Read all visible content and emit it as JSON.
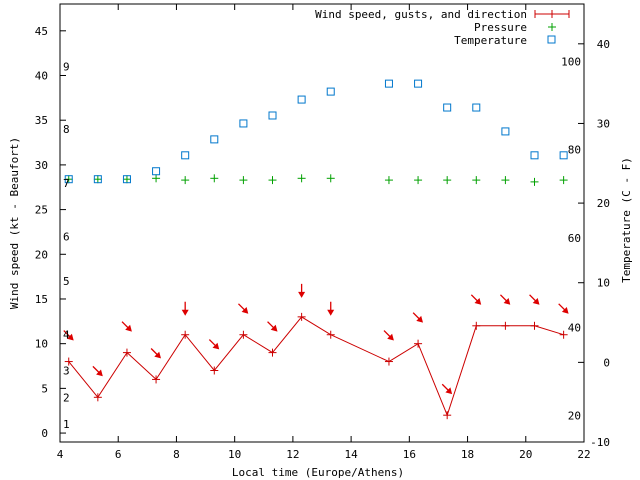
{
  "chart_data": {
    "type": "line",
    "xlabel": "Local time (Europe/Athens)",
    "ylabel": "Wind speed (kt - Beaufort)",
    "y2label": "Temperature (C - F)",
    "xlim": [
      4,
      22
    ],
    "ylim": [
      -1,
      48
    ],
    "y2lim": [
      -10,
      45
    ],
    "x_ticks": [
      "4",
      "6",
      "8",
      "10",
      "12",
      "14",
      "16",
      "18",
      "20",
      "22"
    ],
    "y_ticks": [
      "0",
      "5",
      "10",
      "15",
      "20",
      "25",
      "30",
      "35",
      "40",
      "45"
    ],
    "y2_ticks": [
      "-10",
      "0",
      "10",
      "20",
      "30",
      "40"
    ],
    "beaufort_labels": [
      {
        "label": "1",
        "kt": 1
      },
      {
        "label": "2",
        "kt": 4
      },
      {
        "label": "3",
        "kt": 7
      },
      {
        "label": "4",
        "kt": 11
      },
      {
        "label": "5",
        "kt": 17
      },
      {
        "label": "6",
        "kt": 22
      },
      {
        "label": "7",
        "kt": 28
      },
      {
        "label": "8",
        "kt": 34
      },
      {
        "label": "9",
        "kt": 41
      }
    ],
    "fahrenheit_labels": [
      {
        "label": "20",
        "celsius": -6.7
      },
      {
        "label": "40",
        "celsius": 4.4
      },
      {
        "label": "60",
        "celsius": 15.6
      },
      {
        "label": "80",
        "celsius": 26.7
      },
      {
        "label": "100",
        "celsius": 37.8
      }
    ],
    "legend_position": "top-right",
    "series": [
      {
        "name": "Wind speed, gusts, and direction",
        "color": "#cc0000",
        "marker": "plus",
        "x": [
          4.3,
          5.3,
          6.3,
          7.3,
          8.3,
          9.3,
          10.3,
          11.3,
          12.3,
          13.3,
          15.3,
          16.3,
          17.3,
          18.3,
          19.3,
          20.3,
          21.3
        ],
        "values": [
          8,
          4,
          9,
          6,
          11,
          7,
          11,
          9,
          13,
          11,
          8,
          10,
          2,
          12,
          12,
          12,
          11
        ]
      },
      {
        "name": "Pressure",
        "color": "#00a000",
        "marker": "plus",
        "x": [
          4.3,
          5.3,
          6.3,
          7.3,
          8.3,
          9.3,
          10.3,
          11.3,
          12.3,
          13.3,
          15.3,
          16.3,
          17.3,
          18.3,
          19.3,
          20.3,
          21.3
        ],
        "values": [
          28.4,
          28.4,
          28.4,
          28.5,
          28.3,
          28.5,
          28.3,
          28.3,
          28.5,
          28.5,
          28.3,
          28.3,
          28.3,
          28.3,
          28.3,
          28.1,
          28.3
        ]
      },
      {
        "name": "Temperature",
        "color": "#0077cc",
        "marker": "square",
        "axis": "y2",
        "x": [
          4.3,
          5.3,
          6.3,
          7.3,
          8.3,
          9.3,
          10.3,
          11.3,
          12.3,
          13.3,
          15.3,
          16.3,
          17.3,
          18.3,
          19.3,
          20.3,
          21.3
        ],
        "values": [
          23,
          23,
          23,
          24,
          26,
          28,
          30,
          31,
          33,
          34,
          35,
          35,
          32,
          32,
          29,
          26,
          26
        ]
      }
    ],
    "wind_direction_arrows": {
      "x": [
        4.3,
        5.3,
        6.3,
        7.3,
        8.3,
        9.3,
        10.3,
        11.3,
        12.3,
        13.3,
        15.3,
        16.3,
        17.3,
        18.3,
        19.3,
        20.3,
        21.3
      ],
      "to_direction": [
        "SE",
        "SE",
        "SE",
        "SE",
        "S",
        "SE",
        "SE",
        "SE",
        "S",
        "S",
        "SE",
        "SE",
        "SE",
        "SE",
        "SE",
        "SE",
        "SE"
      ]
    }
  }
}
